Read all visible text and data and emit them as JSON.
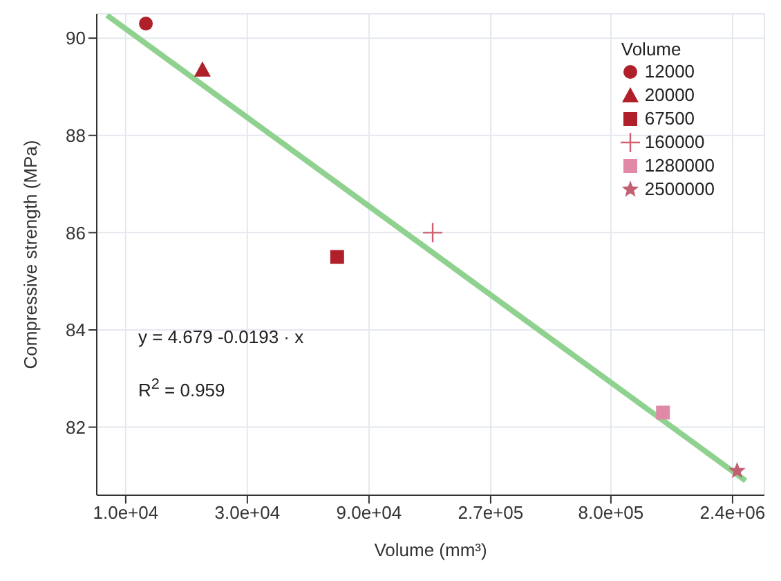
{
  "chart_data": {
    "type": "scatter",
    "xlabel": "Volume (mm³)",
    "ylabel": "Compressive strength (MPa)",
    "legend_title": "Volume",
    "legend": "top right",
    "grid": true,
    "log": "x",
    "xlim": [
      7700,
      3200000
    ],
    "xticks": [
      {
        "value": 10000,
        "label": "1.0e+04"
      },
      {
        "value": 30000,
        "label": "3.0e+04"
      },
      {
        "value": 90000,
        "label": "9.0e+04"
      },
      {
        "value": 270000,
        "label": "2.7e+05"
      },
      {
        "value": 800000,
        "label": "8.0e+05"
      },
      {
        "value": 2400000,
        "label": "2.4e+06"
      }
    ],
    "ylim": [
      80.6,
      90.5
    ],
    "yticks": [
      82,
      84,
      86,
      88,
      90
    ],
    "annotations": [
      "y = 4.679 -0.0193 · x",
      "R$^{2}$ = 0.959"
    ],
    "series": [
      {
        "type": "line",
        "marker": "none",
        "color": "#8fd18f",
        "x": [
          8450,
          2700000
        ],
        "values": [
          90.47,
          80.9
        ]
      },
      {
        "name": "12000",
        "marker": "circle",
        "color": "#b0202a",
        "x": [
          12000
        ],
        "values": [
          90.3
        ]
      },
      {
        "name": "20000",
        "marker": "triangle",
        "color": "#b0202a",
        "x": [
          20000
        ],
        "values": [
          89.35
        ]
      },
      {
        "name": "67500",
        "marker": "square",
        "color": "#b0202a",
        "x": [
          67500
        ],
        "values": [
          85.5
        ]
      },
      {
        "name": "160000",
        "marker": "cross",
        "color": "#d06070",
        "x": [
          160000
        ],
        "values": [
          86.0
        ]
      },
      {
        "name": "1280000",
        "marker": "square",
        "color": "#e08aa8",
        "x": [
          1280000
        ],
        "values": [
          82.3
        ]
      },
      {
        "name": "2500000",
        "marker": "star",
        "color": "#c06070",
        "x": [
          2500000
        ],
        "values": [
          81.1
        ]
      }
    ]
  }
}
